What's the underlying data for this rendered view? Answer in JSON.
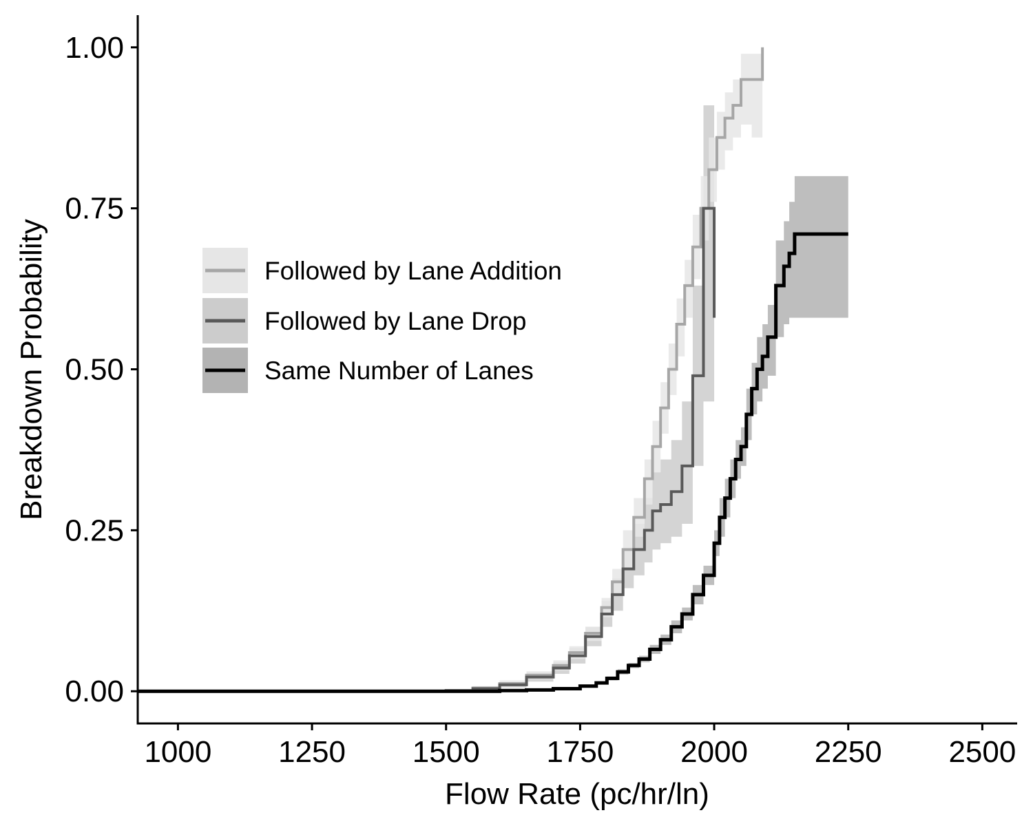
{
  "chart_data": {
    "type": "line",
    "title": "",
    "xlabel": "Flow Rate (pc/hr/ln)",
    "ylabel": "Breakdown Probability",
    "xlim": [
      925,
      2565
    ],
    "ylim": [
      -0.05,
      1.05
    ],
    "xticks": [
      1000,
      1250,
      1500,
      1750,
      2000,
      2250,
      2500
    ],
    "xtick_labels": [
      "1000",
      "1250",
      "1500",
      "1750",
      "2000",
      "2250",
      "2500"
    ],
    "yticks": [
      0,
      0.25,
      0.5,
      0.75,
      1.0
    ],
    "ytick_labels": [
      "0.00",
      "0.25",
      "0.50",
      "0.75",
      "1.00"
    ],
    "grid": false,
    "legend_position": "upper-left inside",
    "series": [
      {
        "name": "Followed by Lane Addition",
        "line_color": "#a6a6a6",
        "band_color": "#e6e6e6",
        "step": true,
        "x": [
          925,
          1500,
          1550,
          1600,
          1650,
          1700,
          1730,
          1760,
          1790,
          1810,
          1830,
          1850,
          1870,
          1885,
          1900,
          1915,
          1930,
          1945,
          1960,
          1975,
          1990,
          2005,
          2020,
          2035,
          2050,
          2070,
          2090
        ],
        "y": [
          0.0,
          0.001,
          0.005,
          0.012,
          0.025,
          0.04,
          0.06,
          0.09,
          0.13,
          0.17,
          0.22,
          0.27,
          0.33,
          0.38,
          0.44,
          0.5,
          0.57,
          0.63,
          0.69,
          0.75,
          0.81,
          0.86,
          0.89,
          0.91,
          0.95,
          0.95,
          1.0
        ],
        "lower": [
          0.0,
          0.0,
          0.003,
          0.008,
          0.019,
          0.032,
          0.05,
          0.078,
          0.115,
          0.15,
          0.19,
          0.24,
          0.29,
          0.34,
          0.4,
          0.46,
          0.52,
          0.58,
          0.64,
          0.7,
          0.76,
          0.81,
          0.84,
          0.86,
          0.88,
          0.86,
          0.86
        ],
        "upper": [
          0.0,
          0.002,
          0.008,
          0.017,
          0.031,
          0.048,
          0.07,
          0.1,
          0.145,
          0.19,
          0.25,
          0.3,
          0.36,
          0.42,
          0.48,
          0.54,
          0.61,
          0.67,
          0.74,
          0.8,
          0.86,
          0.9,
          0.93,
          0.95,
          0.99,
          0.99,
          0.99
        ]
      },
      {
        "name": "Followed by Lane Drop",
        "line_color": "#595959",
        "band_color": "#cccccc",
        "step": true,
        "x": [
          925,
          1500,
          1550,
          1600,
          1650,
          1700,
          1730,
          1760,
          1790,
          1810,
          1830,
          1850,
          1870,
          1885,
          1900,
          1920,
          1940,
          1960,
          1980,
          2000
        ],
        "y": [
          0.0,
          0.001,
          0.004,
          0.01,
          0.022,
          0.036,
          0.055,
          0.085,
          0.12,
          0.15,
          0.19,
          0.22,
          0.25,
          0.28,
          0.29,
          0.31,
          0.35,
          0.49,
          0.75,
          0.58
        ],
        "lower": [
          0.0,
          0.0,
          0.002,
          0.006,
          0.015,
          0.027,
          0.043,
          0.07,
          0.1,
          0.125,
          0.16,
          0.18,
          0.2,
          0.22,
          0.23,
          0.24,
          0.26,
          0.35,
          0.45,
          0.28
        ],
        "upper": [
          0.0,
          0.002,
          0.006,
          0.014,
          0.029,
          0.045,
          0.067,
          0.1,
          0.14,
          0.175,
          0.22,
          0.26,
          0.3,
          0.34,
          0.36,
          0.39,
          0.45,
          0.63,
          0.91,
          0.75
        ]
      },
      {
        "name": "Same Number of Lanes",
        "line_color": "#000000",
        "band_color": "#b3b3b3",
        "step": true,
        "x": [
          925,
          1600,
          1650,
          1700,
          1750,
          1780,
          1800,
          1820,
          1840,
          1860,
          1880,
          1900,
          1920,
          1940,
          1960,
          1980,
          2000,
          2010,
          2020,
          2030,
          2040,
          2050,
          2060,
          2070,
          2080,
          2090,
          2100,
          2115,
          2130,
          2140,
          2150,
          2250
        ],
        "y": [
          0.0,
          0.001,
          0.002,
          0.004,
          0.008,
          0.013,
          0.02,
          0.03,
          0.04,
          0.05,
          0.065,
          0.08,
          0.1,
          0.12,
          0.15,
          0.18,
          0.23,
          0.27,
          0.3,
          0.33,
          0.36,
          0.38,
          0.43,
          0.47,
          0.5,
          0.52,
          0.55,
          0.63,
          0.66,
          0.68,
          0.71,
          0.71
        ],
        "lower": [
          0.0,
          0.0,
          0.001,
          0.003,
          0.006,
          0.011,
          0.017,
          0.026,
          0.036,
          0.045,
          0.058,
          0.072,
          0.09,
          0.11,
          0.135,
          0.165,
          0.21,
          0.24,
          0.27,
          0.3,
          0.33,
          0.35,
          0.39,
          0.43,
          0.45,
          0.47,
          0.49,
          0.55,
          0.57,
          0.58,
          0.58,
          0.58
        ],
        "upper": [
          0.0,
          0.002,
          0.003,
          0.005,
          0.01,
          0.015,
          0.023,
          0.034,
          0.044,
          0.055,
          0.072,
          0.088,
          0.11,
          0.13,
          0.165,
          0.195,
          0.25,
          0.3,
          0.33,
          0.36,
          0.39,
          0.41,
          0.47,
          0.51,
          0.55,
          0.57,
          0.6,
          0.7,
          0.73,
          0.76,
          0.8,
          0.8
        ]
      }
    ]
  }
}
